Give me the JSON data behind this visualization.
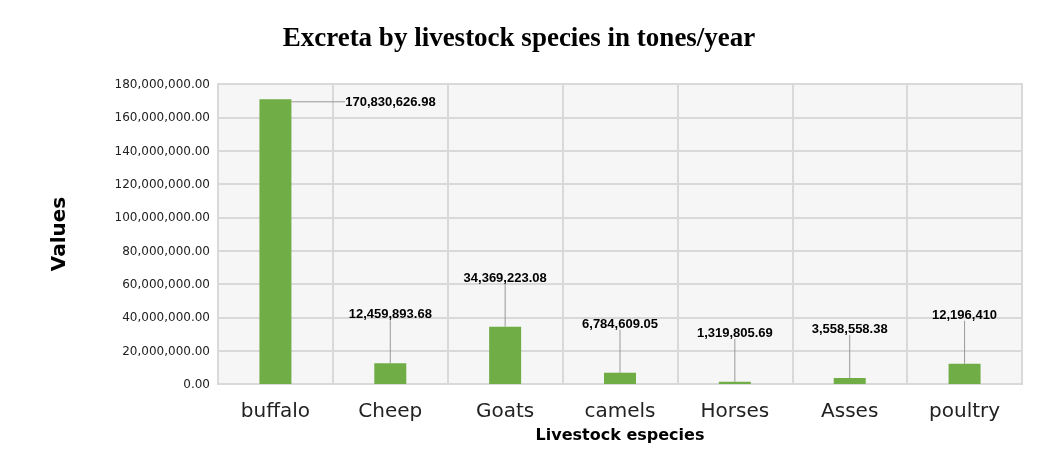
{
  "chart_data": {
    "type": "bar",
    "title": "Excreta by livestock species in tones/year",
    "xlabel": "Livestock especies",
    "ylabel": "Values",
    "categories": [
      "buffalo",
      "Cheep",
      "Goats",
      "camels",
      "Horses",
      "Asses",
      "poultry"
    ],
    "values": [
      170830626.98,
      12459893.68,
      34369223.08,
      6784609.05,
      1319805.69,
      3558558.38,
      12196410
    ],
    "value_labels": [
      "170,830,626.98",
      "12,459,893.68",
      "34,369,223.08",
      "6,784,609.05",
      "1,319,805.69",
      "3,558,558.38",
      "12,196,410"
    ],
    "color": "#70ad47",
    "ylim": [
      0,
      180000000
    ],
    "yticks": [
      {
        "value": 0,
        "label": "0.00"
      },
      {
        "value": 20000000,
        "label": "20,000,000.00"
      },
      {
        "value": 40000000,
        "label": "40,000,000.00"
      },
      {
        "value": 60000000,
        "label": "60,000,000.00"
      },
      {
        "value": 80000000,
        "label": "80,000,000.00"
      },
      {
        "value": 100000000,
        "label": "100,000,000.00"
      },
      {
        "value": 120000000,
        "label": "120,000,000.00"
      },
      {
        "value": 140000000,
        "label": "140,000,000.00"
      },
      {
        "value": 160000000,
        "label": "160,000,000.00"
      },
      {
        "value": 180000000,
        "label": "180,000,000.00"
      }
    ],
    "grid": true
  }
}
